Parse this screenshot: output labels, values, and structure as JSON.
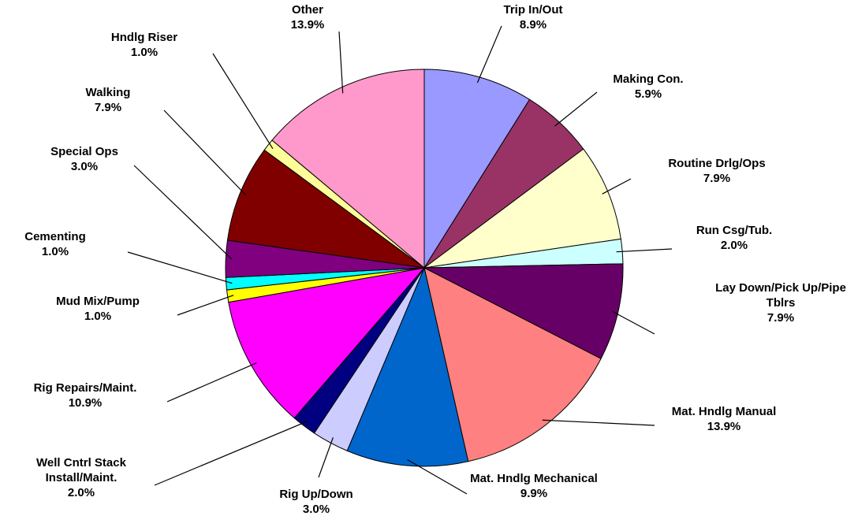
{
  "chart_data": {
    "type": "pie",
    "categories": [
      "Trip In/Out",
      "Making Con.",
      "Routine Drlg/Ops",
      "Run Csg/Tub.",
      "Lay Down/Pick Up/Pipe Tblrs",
      "Mat. Hndlg Manual",
      "Mat. Hndlg Mechanical",
      "Rig Up/Down",
      "Well Cntrl Stack Install/Maint.",
      "Rig Repairs/Maint.",
      "Mud Mix/Pump",
      "Cementing",
      "Special Ops",
      "Walking",
      "Hndlg Riser",
      "Other"
    ],
    "values": [
      8.9,
      5.9,
      7.9,
      2.0,
      7.9,
      13.9,
      9.9,
      3.0,
      2.0,
      10.9,
      1.0,
      1.0,
      3.0,
      7.9,
      1.0,
      13.9
    ],
    "value_labels": [
      "8.9%",
      "5.9%",
      "7.9%",
      "2.0%",
      "7.9%",
      "13.9%",
      "9.9%",
      "3.0%",
      "2.0%",
      "10.9%",
      "1.0%",
      "1.0%",
      "3.0%",
      "7.9%",
      "1.0%",
      "13.9%"
    ],
    "colors": [
      "#9999ff",
      "#993366",
      "#ffffcc",
      "#ccffff",
      "#660066",
      "#ff8080",
      "#0066cc",
      "#ccccff",
      "#000080",
      "#ff00ff",
      "#ffff00",
      "#00ffff",
      "#800080",
      "#800000",
      "#ffff99",
      "#ff99cc"
    ]
  }
}
